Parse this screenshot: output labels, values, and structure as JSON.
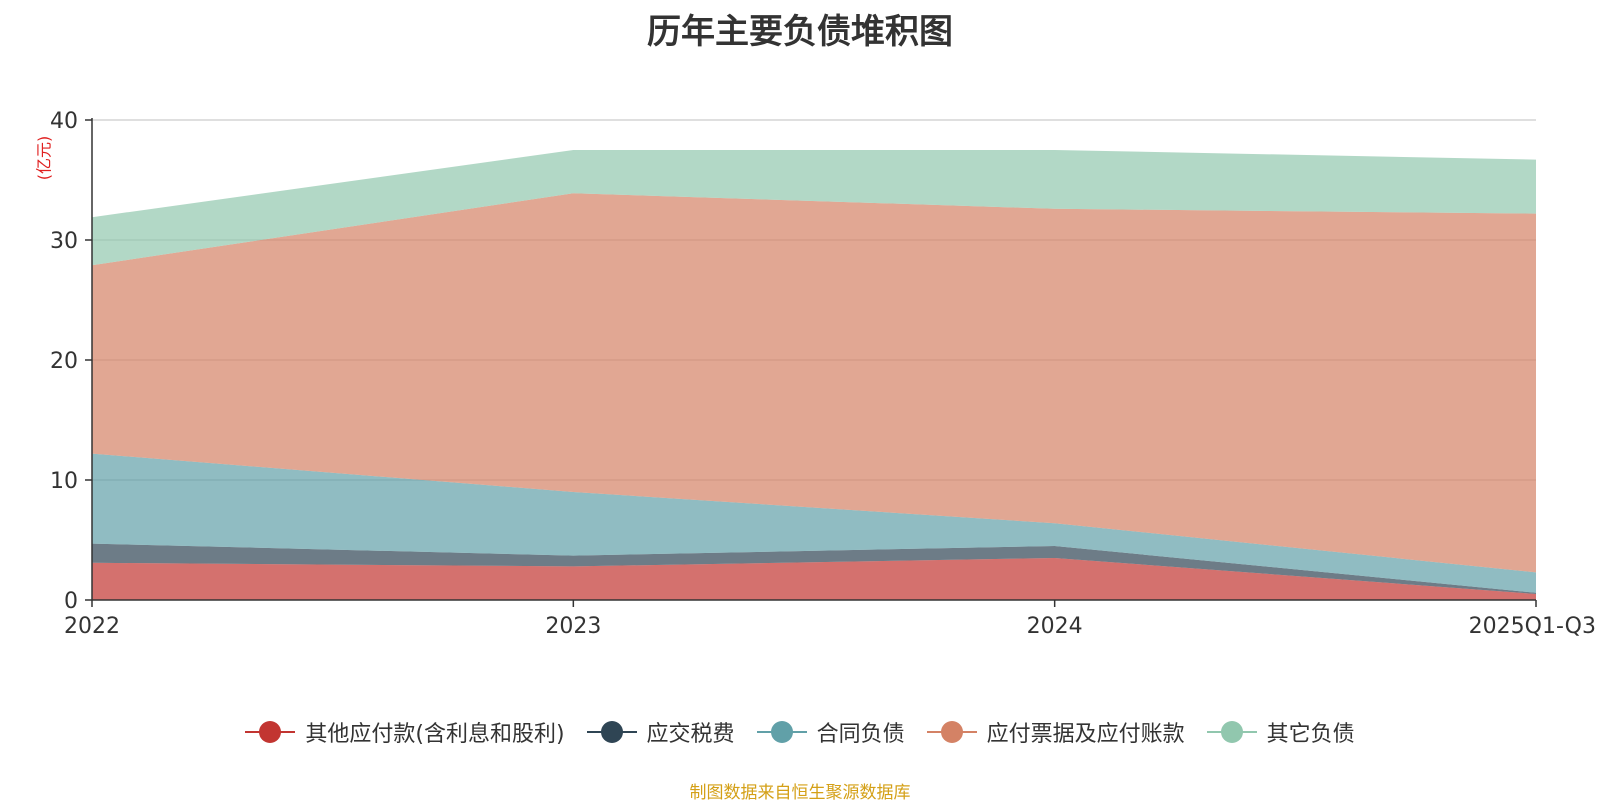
{
  "chart_data": {
    "type": "area",
    "stacked": true,
    "title": "历年主要负债堆积图",
    "ylabel": "(亿元)",
    "xlabel": "",
    "categories": [
      "2022",
      "2023",
      "2024",
      "2025Q1-Q3"
    ],
    "ylim": [
      0,
      40
    ],
    "yticks": [
      0,
      10,
      20,
      30,
      40
    ],
    "grid": true,
    "legend_position": "bottom",
    "series": [
      {
        "name": "其他应付款(含利息和股利)",
        "color": "#c23531",
        "values": [
          3.1,
          2.8,
          3.5,
          0.5
        ]
      },
      {
        "name": "应交税费",
        "color": "#2f4554",
        "values": [
          1.6,
          0.9,
          1.0,
          0.1
        ]
      },
      {
        "name": "合同负债",
        "color": "#61a0a8",
        "values": [
          7.5,
          5.3,
          1.9,
          1.7
        ]
      },
      {
        "name": "应付票据及应付账款",
        "color": "#d48265",
        "values": [
          15.7,
          24.9,
          26.2,
          29.9
        ]
      },
      {
        "name": "其它负债",
        "color": "#91c7ae",
        "values": [
          4.0,
          3.6,
          4.9,
          4.5
        ]
      }
    ]
  },
  "source_text": "制图数据来自恒生聚源数据库"
}
